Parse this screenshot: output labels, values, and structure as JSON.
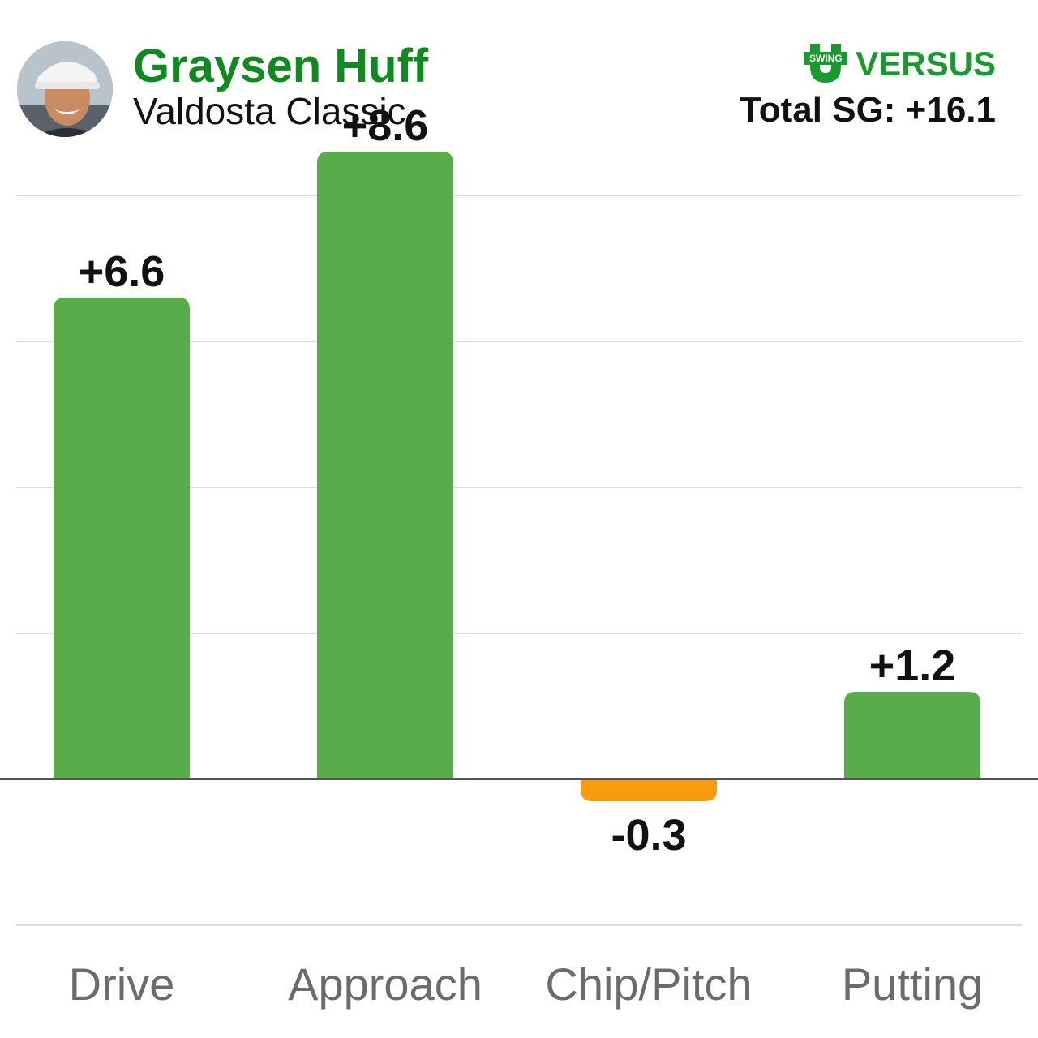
{
  "header": {
    "player_name": "Graysen Huff",
    "event_name": "Valdosta Classic",
    "total_label": "Total SG: +16.1"
  },
  "brand": {
    "badge_text": "SWING",
    "name": "VERSUS",
    "icon": "swing-u-logo",
    "color": "#1a9a2e"
  },
  "avatar": {
    "icon": "player-photo"
  },
  "chart_data": {
    "type": "bar",
    "categories": [
      "Drive",
      "Approach",
      "Chip/Pitch",
      "Putting"
    ],
    "values": [
      6.6,
      8.6,
      -0.3,
      1.2
    ],
    "labels": [
      "+6.6",
      "+8.6",
      "-0.3",
      "+1.2"
    ],
    "ylim": [
      -2,
      8.6
    ],
    "grid": true,
    "legend": "none",
    "colors": {
      "positive": "#58ad4a",
      "negative": "#f89c0e",
      "gridline": "#dddddd",
      "baseline": "#555555",
      "label": "#111111",
      "category": "#6b6b6b"
    }
  }
}
